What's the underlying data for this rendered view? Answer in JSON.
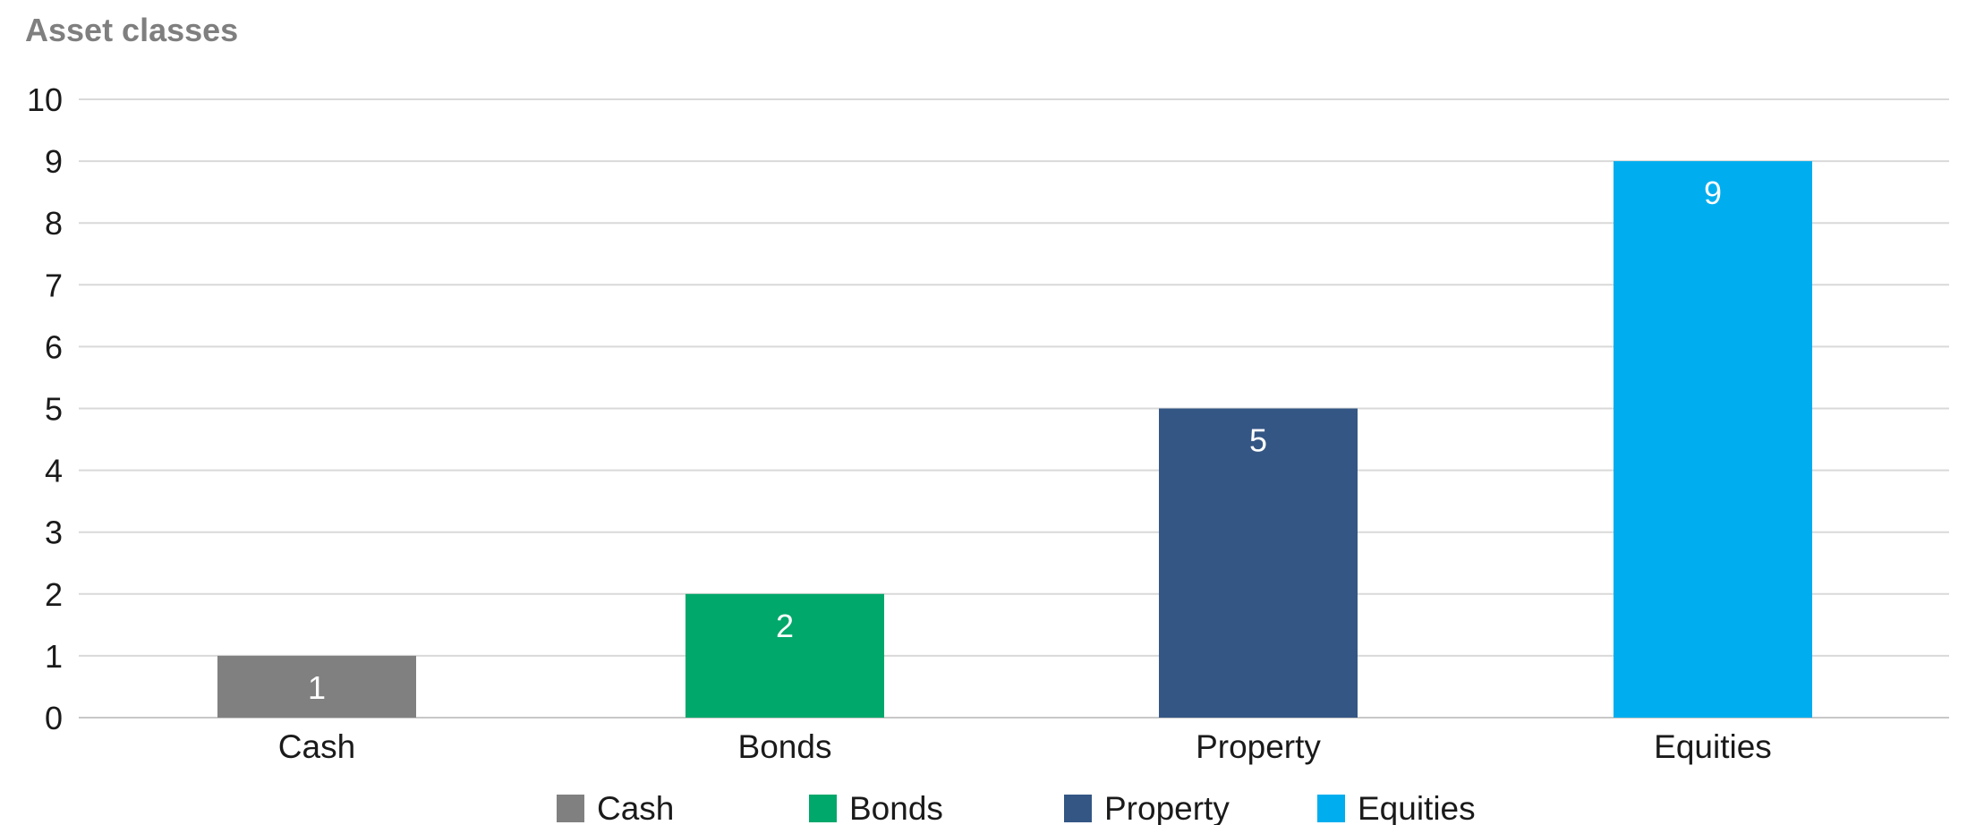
{
  "chart_data": {
    "type": "bar",
    "title": "Asset classes",
    "xlabel": "",
    "ylabel": "",
    "categories": [
      "Cash",
      "Bonds",
      "Property",
      "Equities"
    ],
    "values": [
      1,
      2,
      5,
      9
    ],
    "colors": [
      "#808080",
      "#00a86b",
      "#345684",
      "#00aeef"
    ],
    "ylim": [
      0,
      10
    ],
    "yticks": [
      "0",
      "1",
      "2",
      "3",
      "4",
      "5",
      "6",
      "7",
      "8",
      "9",
      "10"
    ],
    "data_labels": [
      "1",
      "2",
      "5",
      "9"
    ],
    "grid": true,
    "legend": {
      "position": "bottom",
      "entries": [
        "Cash",
        "Bonds",
        "Property",
        "Equities"
      ]
    }
  }
}
